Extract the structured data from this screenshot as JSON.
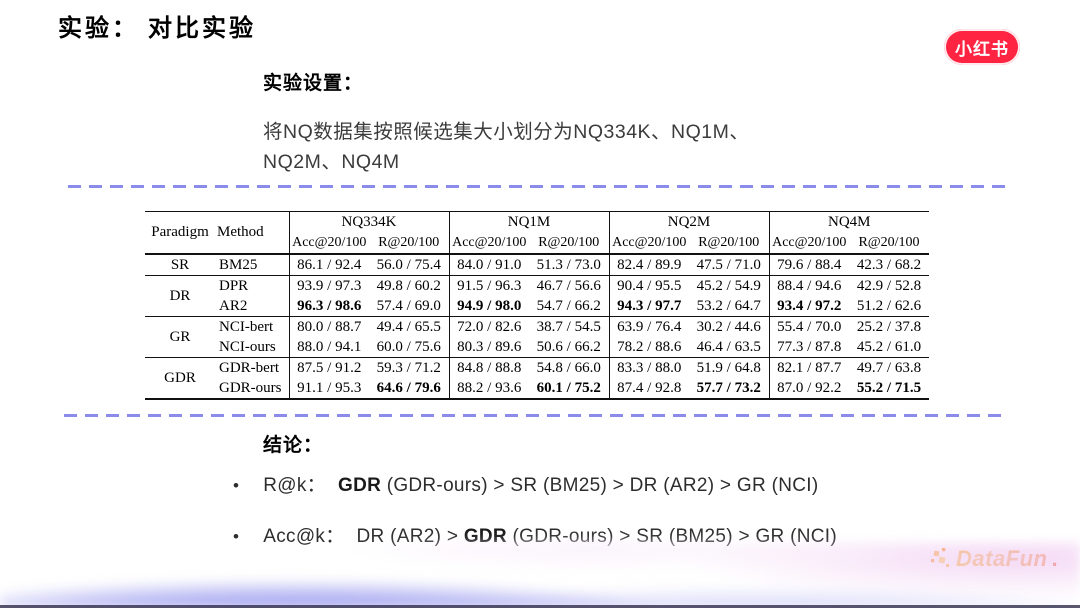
{
  "slide_title": "实验： 对比实验",
  "header_logo": {
    "text": "小红书",
    "bg_color": "#FF2442"
  },
  "setup": {
    "heading": "实验设置：",
    "line1": "将NQ数据集按照候选集大小划分为NQ334K、NQ1M、",
    "line2": "NQ2M、NQ4M"
  },
  "table": {
    "corner": {
      "paradigm": "Paradigm",
      "method": "Method"
    },
    "groups": [
      {
        "name": "NQ334K",
        "sub": [
          "Acc@20/100",
          "R@20/100"
        ]
      },
      {
        "name": "NQ1M",
        "sub": [
          "Acc@20/100",
          "R@20/100"
        ]
      },
      {
        "name": "NQ2M",
        "sub": [
          "Acc@20/100",
          "R@20/100"
        ]
      },
      {
        "name": "NQ4M",
        "sub": [
          "Acc@20/100",
          "R@20/100"
        ]
      }
    ],
    "rows": [
      {
        "paradigm": "SR",
        "rowspan": 1,
        "group_start": false,
        "method": "BM25",
        "values": [
          "86.1 / 92.4",
          "56.0 / 75.4",
          "84.0 / 91.0",
          "51.3 / 73.0",
          "82.4 / 89.9",
          "47.5 / 71.0",
          "79.6 / 88.4",
          "42.3 / 68.2"
        ],
        "bold": []
      },
      {
        "paradigm": "DR",
        "rowspan": 2,
        "group_start": true,
        "method": "DPR",
        "values": [
          "93.9 / 97.3",
          "49.8 / 60.2",
          "91.5 / 96.3",
          "46.7 / 56.6",
          "90.4 / 95.5",
          "45.2 / 54.9",
          "88.4 / 94.6",
          "42.9 / 52.8"
        ],
        "bold": []
      },
      {
        "paradigm": null,
        "rowspan": 0,
        "group_start": false,
        "method": "AR2",
        "values": [
          "96.3 / 98.6",
          "57.4 / 69.0",
          "94.9 / 98.0",
          "54.7 / 66.2",
          "94.3 / 97.7",
          "53.2 / 64.7",
          "93.4 / 97.2",
          "51.2 / 62.6"
        ],
        "bold": [
          0,
          2,
          4,
          6
        ]
      },
      {
        "paradigm": "GR",
        "rowspan": 2,
        "group_start": true,
        "method": "NCI-bert",
        "values": [
          "80.0 / 88.7",
          "49.4 / 65.5",
          "72.0 / 82.6",
          "38.7 / 54.5",
          "63.9 / 76.4",
          "30.2 / 44.6",
          "55.4 / 70.0",
          "25.2 / 37.8"
        ],
        "bold": []
      },
      {
        "paradigm": null,
        "rowspan": 0,
        "group_start": false,
        "method": "NCI-ours",
        "values": [
          "88.0 / 94.1",
          "60.0 / 75.6",
          "80.3 / 89.6",
          "50.6 / 66.2",
          "78.2 / 88.6",
          "46.4 / 63.5",
          "77.3 / 87.8",
          "45.2 / 61.0"
        ],
        "bold": []
      },
      {
        "paradigm": "GDR",
        "rowspan": 2,
        "group_start": true,
        "method": "GDR-bert",
        "values": [
          "87.5 / 91.2",
          "59.3 / 71.2",
          "84.8 / 88.8",
          "54.8 / 66.0",
          "83.3 / 88.0",
          "51.9 / 64.8",
          "82.1 / 87.7",
          "49.7 / 63.8"
        ],
        "bold": []
      },
      {
        "paradigm": null,
        "rowspan": 0,
        "group_start": false,
        "method": "GDR-ours",
        "values": [
          "91.1 / 95.3",
          "64.6 / 79.6",
          "88.2 / 93.6",
          "60.1 / 75.2",
          "87.4 / 92.8",
          "57.7 / 73.2",
          "87.0 / 92.2",
          "55.2 / 71.5"
        ],
        "bold": [
          1,
          3,
          5,
          7
        ]
      }
    ]
  },
  "conclusion": {
    "heading": "结论：",
    "bullets": [
      {
        "marker": "•",
        "label": "R@k：",
        "pre": "",
        "bold": "GDR",
        "post": " (GDR-ours) > SR (BM25) > DR (AR2) > GR (NCI)"
      },
      {
        "marker": "•",
        "label": "Acc@k：",
        "pre": "DR (AR2) > ",
        "bold": "GDR",
        "post": " (GDR-ours) > SR (BM25) > GR (NCI)"
      }
    ]
  },
  "footer_logo": {
    "text": "DataFun",
    "dot": "."
  },
  "colors": {
    "dashed_line": "#8B8BEA",
    "xhs_red": "#FF2442",
    "datafun_orange": "#F7941D",
    "wave_purple": "#8C8CEA",
    "wave_pink": "#F3DCF2"
  }
}
